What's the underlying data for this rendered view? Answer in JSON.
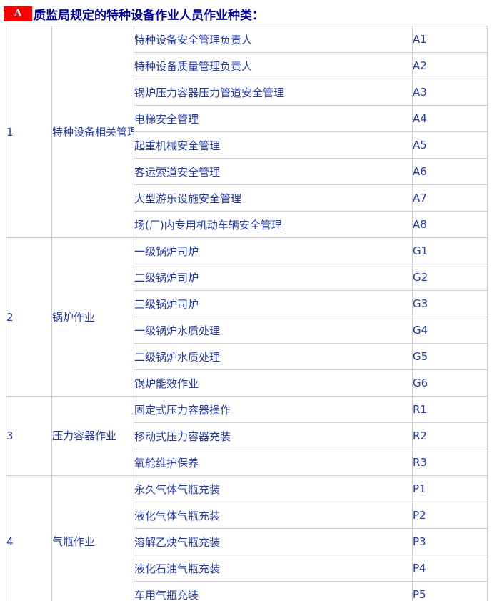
{
  "title": {
    "badge": "A",
    "text": "质监局规定的特种设备作业人员作业种类："
  },
  "colors": {
    "badge_background": "#ff0000",
    "badge_text": "#ffffff",
    "title_text": "#000099",
    "body_text": "#2138a8",
    "table_border": "#cccccc",
    "page_background": "#ffffff"
  },
  "table": {
    "groups": [
      {
        "no": "1",
        "category": "特种设备相关管理",
        "items": [
          {
            "job": "特种设备安全管理负责人",
            "code": "A1"
          },
          {
            "job": "特种设备质量管理负责人",
            "code": "A2"
          },
          {
            "job": "锅炉压力容器压力管道安全管理",
            "code": "A3"
          },
          {
            "job": "电梯安全管理",
            "code": "A4"
          },
          {
            "job": "起重机械安全管理",
            "code": "A5"
          },
          {
            "job": "客运索道安全管理",
            "code": "A6"
          },
          {
            "job": "大型游乐设施安全管理",
            "code": "A7"
          },
          {
            "job": "场(厂)内专用机动车辆安全管理",
            "code": "A8"
          }
        ]
      },
      {
        "no": "2",
        "category": "锅炉作业",
        "items": [
          {
            "job": "一级锅炉司炉",
            "code": "G1"
          },
          {
            "job": "二级锅炉司炉",
            "code": "G2"
          },
          {
            "job": "三级锅炉司炉",
            "code": "G3"
          },
          {
            "job": "一级锅炉水质处理",
            "code": "G4"
          },
          {
            "job": "二级锅炉水质处理",
            "code": "G5"
          },
          {
            "job": "锅炉能效作业",
            "code": "G6"
          }
        ]
      },
      {
        "no": "3",
        "category": "压力容器作业",
        "items": [
          {
            "job": "固定式压力容器操作",
            "code": "R1"
          },
          {
            "job": "移动式压力容器充装",
            "code": "R2"
          },
          {
            "job": "氧舱维护保养",
            "code": "R3"
          }
        ]
      },
      {
        "no": "4",
        "category": "气瓶作业",
        "items": [
          {
            "job": "永久气体气瓶充装",
            "code": "P1"
          },
          {
            "job": "液化气体气瓶充装",
            "code": "P2"
          },
          {
            "job": "溶解乙炔气瓶充装",
            "code": "P3"
          },
          {
            "job": "液化石油气瓶充装",
            "code": "P4"
          },
          {
            "job": "车用气瓶充装",
            "code": "P5"
          }
        ]
      }
    ]
  }
}
